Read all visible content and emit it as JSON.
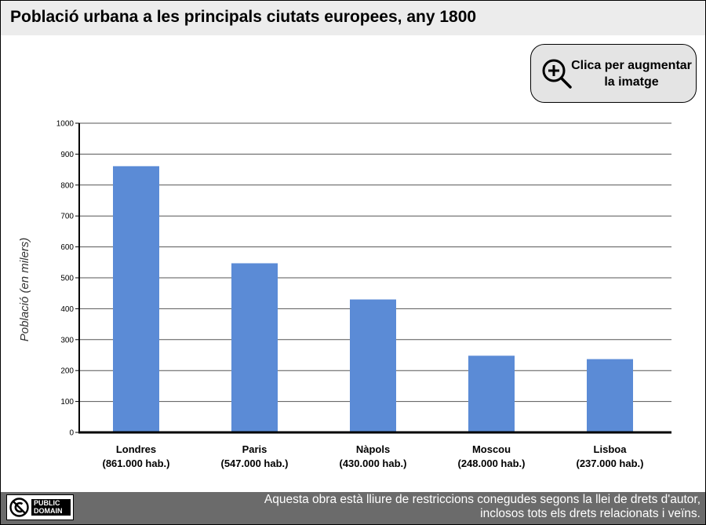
{
  "page": {
    "title": "Població urbana a les principals ciutats europees, any 1800"
  },
  "zoom_button": {
    "label_line1": "Clica per augmentar",
    "label_line2": "la imatge",
    "icon": "zoom-in-icon"
  },
  "chart_data": {
    "type": "bar",
    "title": "",
    "xlabel": "",
    "ylabel": "Població (en milers)",
    "ylim": [
      0,
      1000
    ],
    "yticks": [
      0,
      100,
      200,
      300,
      400,
      500,
      600,
      700,
      800,
      900,
      1000
    ],
    "grid": true,
    "categories": [
      "Londres",
      "Paris",
      "Nàpols",
      "Moscou",
      "Lisboa"
    ],
    "category_sublabels": [
      "(861.000 hab.)",
      "(547.000 hab.)",
      "(430.000 hab.)",
      "(248.000 hab.)",
      "(237.000 hab.)"
    ],
    "values": [
      861,
      547,
      430,
      248,
      237
    ],
    "bar_color": "#5b8bd6"
  },
  "footer": {
    "badge_text": "PUBLIC\nDOMAIN",
    "badge_icon": "public-domain-icon",
    "license_line1": "Aquesta obra està lliure de restriccions conegudes segons la llei de drets d'autor,",
    "license_line2": "inclosos tots els drets relacionats i veïns."
  }
}
